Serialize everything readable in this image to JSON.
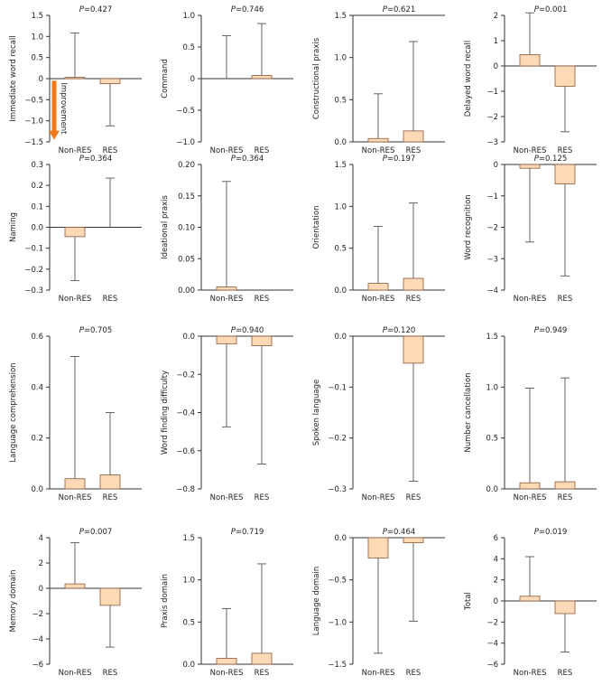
{
  "colors": {
    "bar_fill": "#fdd9b5",
    "bar_stroke": "#8a5a3a",
    "axis": "#333333",
    "whisker": "#555555",
    "arrow": "#f07a1a"
  },
  "annotation": {
    "text": "Improvement",
    "panel_index": 0,
    "from_value": -0.05,
    "to_value": -1.45
  },
  "chart_data": [
    {
      "type": "bar",
      "title_p": "P",
      "title_value": "=0.427",
      "ylabel": "Immediate word recall",
      "categories": [
        "Non-RES",
        "RES"
      ],
      "values": [
        0.03,
        -0.12
      ],
      "errors": [
        1.05,
        1.0
      ],
      "ylim": [
        -1.5,
        1.5
      ],
      "yticks": [
        -1.5,
        -1.0,
        -0.5,
        0,
        0.5,
        1.0,
        1.5
      ],
      "tick_labels": [
        "−1.5",
        "−1.0",
        "−0.5",
        "0",
        "0.5",
        "1.0",
        "1.5"
      ],
      "top_frame": false
    },
    {
      "type": "bar",
      "title_p": "P",
      "title_value": "=0.746",
      "ylabel": "Command",
      "categories": [
        "Non-RES",
        "RES"
      ],
      "values": [
        0.0,
        0.05
      ],
      "errors": [
        0.68,
        0.82
      ],
      "ylim": [
        -1.0,
        1.0
      ],
      "yticks": [
        -1.0,
        -0.5,
        0,
        0.5,
        1.0
      ],
      "tick_labels": [
        "−1.0",
        "−0.5",
        "0",
        "0.5",
        "1.0"
      ],
      "top_frame": false
    },
    {
      "type": "bar",
      "title_p": "P",
      "title_value": "=0.621",
      "ylabel": "Constructional praxis",
      "categories": [
        "Non-RES",
        "RES"
      ],
      "values": [
        0.04,
        0.13
      ],
      "errors": [
        0.53,
        1.06
      ],
      "ylim": [
        0,
        1.5
      ],
      "yticks": [
        0,
        0.5,
        1.0,
        1.5
      ],
      "tick_labels": [
        "0.0",
        "0.5",
        "1.0",
        "1.5"
      ],
      "top_frame": true
    },
    {
      "type": "bar",
      "title_p": "P",
      "title_value": "=0.001",
      "ylabel": "Delayed word recall",
      "categories": [
        "Non-RES",
        "RES"
      ],
      "values": [
        0.45,
        -0.8
      ],
      "errors": [
        1.65,
        1.8
      ],
      "ylim": [
        -3,
        2
      ],
      "yticks": [
        -3,
        -2,
        -1,
        0,
        1,
        2
      ],
      "tick_labels": [
        "−3",
        "−2",
        "−1",
        "0",
        "1",
        "2"
      ],
      "top_frame": false
    },
    {
      "type": "bar",
      "title_p": "P",
      "title_value": "=0.364",
      "ylabel": "Naming",
      "categories": [
        "Non-RES",
        "RES"
      ],
      "values": [
        -0.045,
        0.0
      ],
      "errors": [
        0.21,
        0.235
      ],
      "ylim": [
        -0.3,
        0.3
      ],
      "yticks": [
        -0.3,
        -0.2,
        -0.1,
        0,
        0.1,
        0.2,
        0.3
      ],
      "tick_labels": [
        "−0.3",
        "−0.2",
        "−0.1",
        "0.0",
        "0.1",
        "0.2",
        "0.3"
      ],
      "top_frame": false
    },
    {
      "type": "bar",
      "title_p": "P",
      "title_value": "=0.364",
      "ylabel": "Ideational praxis",
      "categories": [
        "Non-RES",
        "RES"
      ],
      "values": [
        0.005,
        0.0
      ],
      "errors": [
        0.168,
        0.0
      ],
      "ylim": [
        0,
        0.2
      ],
      "yticks": [
        0,
        0.05,
        0.1,
        0.15,
        0.2
      ],
      "tick_labels": [
        "0.00",
        "0.05",
        "0.10",
        "0.15",
        "0.20"
      ],
      "top_frame": false
    },
    {
      "type": "bar",
      "title_p": "P",
      "title_value": "=0.197",
      "ylabel": "Orientation",
      "categories": [
        "Non-RES",
        "RES"
      ],
      "values": [
        0.08,
        0.14
      ],
      "errors": [
        0.68,
        0.9
      ],
      "ylim": [
        0,
        1.5
      ],
      "yticks": [
        0,
        0.5,
        1.0,
        1.5
      ],
      "tick_labels": [
        "0.0",
        "0.5",
        "1.0",
        "1.5"
      ],
      "top_frame": false
    },
    {
      "type": "bar",
      "title_p": "P",
      "title_value": "=0.125",
      "ylabel": "Word recognition",
      "categories": [
        "Non-RES",
        "RES"
      ],
      "values": [
        -0.12,
        -0.62
      ],
      "errors": [
        2.35,
        2.93
      ],
      "ylim": [
        -4,
        0
      ],
      "yticks": [
        -4,
        -3,
        -2,
        -1,
        0
      ],
      "tick_labels": [
        "−4",
        "−3",
        "−2",
        "−1",
        "0"
      ],
      "top_frame": true
    },
    {
      "type": "bar",
      "title_p": "P",
      "title_value": "=0.705",
      "ylabel": "Language comprehension",
      "categories": [
        "Non-RES",
        "RES"
      ],
      "values": [
        0.04,
        0.055
      ],
      "errors": [
        0.48,
        0.245
      ],
      "ylim": [
        0,
        0.6
      ],
      "yticks": [
        0,
        0.2,
        0.4,
        0.6
      ],
      "tick_labels": [
        "0.0",
        "0.2",
        "0.4",
        "0.6"
      ],
      "top_frame": false
    },
    {
      "type": "bar",
      "title_p": "P",
      "title_value": "=0.940",
      "ylabel": "Word finding difficulty",
      "categories": [
        "Non-RES",
        "RES"
      ],
      "values": [
        -0.04,
        -0.05
      ],
      "errors": [
        0.435,
        0.62
      ],
      "ylim": [
        -0.8,
        0
      ],
      "yticks": [
        -0.8,
        -0.6,
        -0.4,
        -0.2,
        0
      ],
      "tick_labels": [
        "−0.8",
        "−0.6",
        "−0.4",
        "−0.2",
        "0.0"
      ],
      "top_frame": true
    },
    {
      "type": "bar",
      "title_p": "P",
      "title_value": "=0.120",
      "ylabel": "Spoken language",
      "categories": [
        "Non-RES",
        "RES"
      ],
      "values": [
        0.0,
        -0.053
      ],
      "errors": [
        0.0,
        0.232
      ],
      "ylim": [
        -0.3,
        0
      ],
      "yticks": [
        -0.3,
        -0.2,
        -0.1,
        0
      ],
      "tick_labels": [
        "−0.3",
        "−0.2",
        "−0.1",
        "0.0"
      ],
      "top_frame": true
    },
    {
      "type": "bar",
      "title_p": "P",
      "title_value": "=0.949",
      "ylabel": "Number cancellation",
      "categories": [
        "Non-RES",
        "RES"
      ],
      "values": [
        0.06,
        0.07
      ],
      "errors": [
        0.93,
        1.02
      ],
      "ylim": [
        0,
        1.5
      ],
      "yticks": [
        0,
        0.5,
        1.0,
        1.5
      ],
      "tick_labels": [
        "0.0",
        "0.5",
        "1.0",
        "1.5"
      ],
      "top_frame": false
    },
    {
      "type": "bar",
      "title_p": "P",
      "title_value": "=0.007",
      "ylabel": "Memory domain",
      "categories": [
        "Non-RES",
        "RES"
      ],
      "values": [
        0.35,
        -1.35
      ],
      "errors": [
        3.25,
        3.3
      ],
      "ylim": [
        -6,
        4
      ],
      "yticks": [
        -6,
        -4,
        -2,
        0,
        2,
        4
      ],
      "tick_labels": [
        "−6",
        "−4",
        "−2",
        "0",
        "2",
        "4"
      ],
      "top_frame": false
    },
    {
      "type": "bar",
      "title_p": "P",
      "title_value": "=0.719",
      "ylabel": "Praxis domain",
      "categories": [
        "Non-RES",
        "RES"
      ],
      "values": [
        0.07,
        0.13
      ],
      "errors": [
        0.59,
        1.06
      ],
      "ylim": [
        0,
        1.5
      ],
      "yticks": [
        0,
        0.5,
        1.0,
        1.5
      ],
      "tick_labels": [
        "0.0",
        "0.5",
        "1.0",
        "1.5"
      ],
      "top_frame": false
    },
    {
      "type": "bar",
      "title_p": "P",
      "title_value": "=0.464",
      "ylabel": "Language domain",
      "categories": [
        "Non-RES",
        "RES"
      ],
      "values": [
        -0.24,
        -0.06
      ],
      "errors": [
        1.13,
        0.93
      ],
      "ylim": [
        -1.5,
        0
      ],
      "yticks": [
        -1.5,
        -1.0,
        -0.5,
        0
      ],
      "tick_labels": [
        "−1.5",
        "−1.0",
        "−0.5",
        "0.0"
      ],
      "top_frame": true
    },
    {
      "type": "bar",
      "title_p": "P",
      "title_value": "=0.019",
      "ylabel": "Total",
      "categories": [
        "Non-RES",
        "RES"
      ],
      "values": [
        0.45,
        -1.2
      ],
      "errors": [
        3.75,
        3.65
      ],
      "ylim": [
        -6,
        6
      ],
      "yticks": [
        -6,
        -4,
        -2,
        0,
        2,
        4,
        6
      ],
      "tick_labels": [
        "−6",
        "−4",
        "−2",
        "0",
        "2",
        "4",
        "6"
      ],
      "top_frame": false
    }
  ]
}
